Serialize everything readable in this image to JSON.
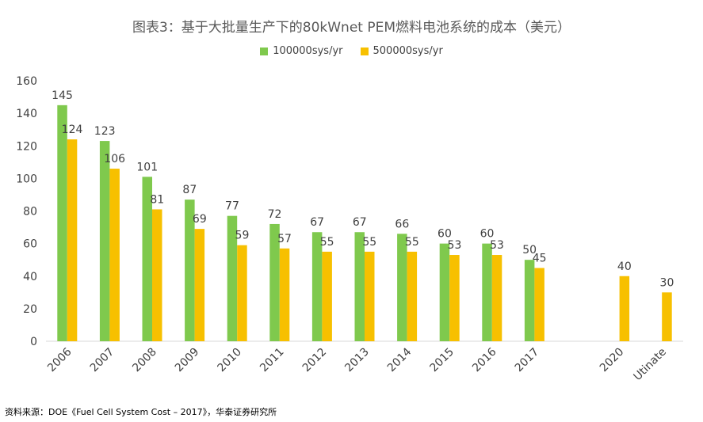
{
  "title": "图表3：基于大批量生产下的80kWnet PEM燃料电池系统的成本（美元）",
  "source": "资料来源：DOE《Fuel Cell System Cost – 2017》，华泰证券研究所",
  "chart_data": {
    "type": "bar",
    "title": "图表3：基于大批量生产下的80kWnet PEM燃料电池系统的成本（美元）",
    "categories": [
      "2006",
      "2007",
      "2008",
      "2009",
      "2010",
      "2011",
      "2012",
      "2013",
      "2014",
      "2015",
      "2016",
      "2017",
      "",
      "2020",
      "Utinate"
    ],
    "series": [
      {
        "name": "100000sys/yr",
        "color": "#7fc94d",
        "values": [
          145,
          123,
          101,
          87,
          77,
          72,
          67,
          67,
          66,
          60,
          60,
          50,
          null,
          null,
          null
        ]
      },
      {
        "name": "500000sys/yr",
        "color": "#f7c000",
        "values": [
          124,
          106,
          81,
          69,
          59,
          57,
          55,
          55,
          55,
          53,
          53,
          45,
          null,
          40,
          30
        ]
      }
    ],
    "ylim": [
      0,
      160
    ],
    "yticks": [
      0,
      20,
      40,
      60,
      80,
      100,
      120,
      140,
      160
    ],
    "grid": false,
    "legend": "top-center",
    "xlabel": "",
    "ylabel": ""
  }
}
